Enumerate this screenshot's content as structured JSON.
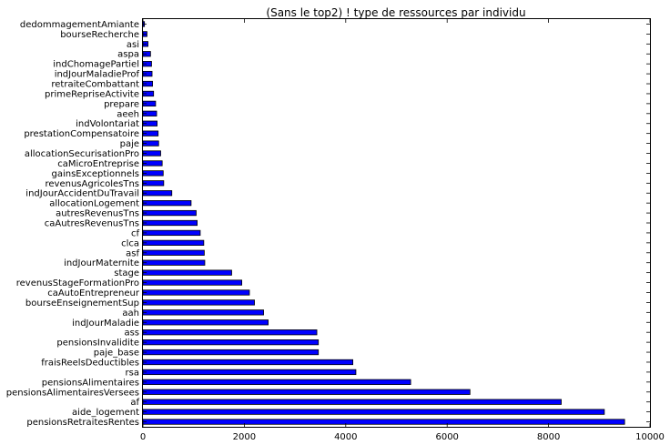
{
  "chart_data": {
    "type": "bar",
    "orientation": "horizontal",
    "title": "(Sans le top2) ! type de ressources par individu",
    "xlabel": "",
    "ylabel": "",
    "xlim": [
      0,
      10000
    ],
    "xticks": [
      "0",
      "2000",
      "4000",
      "6000",
      "8000",
      "10000"
    ],
    "grid": false,
    "bar_color": "#0000ff",
    "categories": [
      "dedommagementAmiante",
      "bourseRecherche",
      "asi",
      "aspa",
      "indChomagePartiel",
      "indJourMaladieProf",
      "retraiteCombattant",
      "primeRepriseActivite",
      "prepare",
      "aeeh",
      "indVolontariat",
      "prestationCompensatoire",
      "paje",
      "allocationSecurisationPro",
      "caMicroEntreprise",
      "gainsExceptionnels",
      "revenusAgricolesTns",
      "indJourAccidentDuTravail",
      "allocationLogement",
      "autresRevenusTns",
      "caAutresRevenusTns",
      "cf",
      "clca",
      "asf",
      "indJourMaternite",
      "stage",
      "revenusStageFormationPro",
      "caAutoEntrepreneur",
      "bourseEnseignementSup",
      "aah",
      "indJourMaladie",
      "ass",
      "pensionsInvalidite",
      "paje_base",
      "fraisReelsDeductibles",
      "rsa",
      "pensionsAlimentaires",
      "pensionsAlimentairesVersees",
      "af",
      "aide_logement",
      "pensionsRetraitesRentes"
    ],
    "values": [
      30,
      80,
      100,
      150,
      170,
      180,
      190,
      210,
      250,
      270,
      280,
      300,
      310,
      350,
      380,
      400,
      410,
      570,
      950,
      1050,
      1070,
      1130,
      1200,
      1210,
      1220,
      1750,
      1950,
      2100,
      2200,
      2380,
      2470,
      3430,
      3460,
      3460,
      4140,
      4200,
      5280,
      6450,
      8250,
      9100,
      9500
    ]
  }
}
